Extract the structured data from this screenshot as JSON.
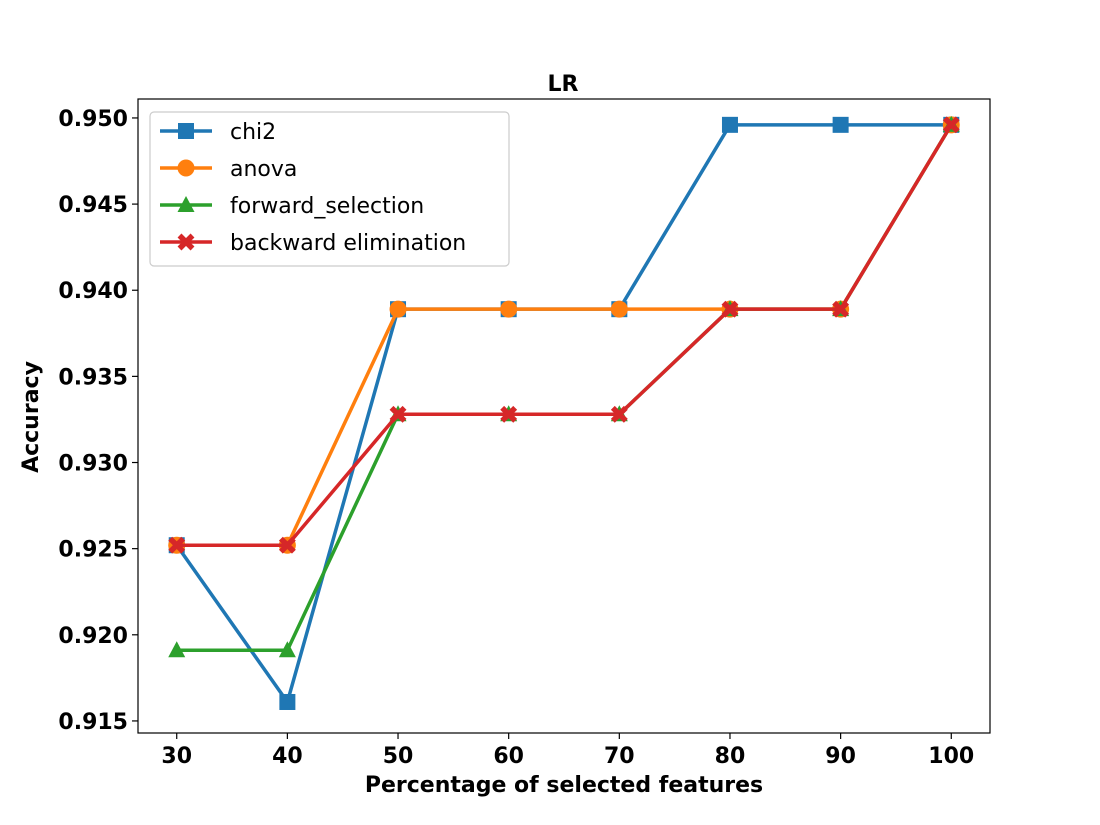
{
  "chart_data": {
    "type": "line",
    "title": "LR",
    "xlabel": "Percentage of selected features",
    "ylabel": "Accuracy",
    "x": [
      30,
      40,
      50,
      60,
      70,
      80,
      90,
      100
    ],
    "xticks": [
      "30",
      "40",
      "50",
      "60",
      "70",
      "80",
      "90",
      "100"
    ],
    "yticks": [
      "0.915",
      "0.920",
      "0.925",
      "0.930",
      "0.935",
      "0.940",
      "0.945",
      "0.950"
    ],
    "ylim": [
      0.9143,
      0.9511
    ],
    "xlim": [
      26.5,
      103.5
    ],
    "grid": false,
    "legend_position": "top-left",
    "series": [
      {
        "name": "chi2",
        "color": "#1f77b4",
        "marker": "square",
        "values": [
          0.9252,
          0.9161,
          0.9389,
          0.9389,
          0.9389,
          0.9496,
          0.9496,
          0.9496
        ]
      },
      {
        "name": "anova",
        "color": "#ff7f0e",
        "marker": "circle",
        "values": [
          0.9252,
          0.9252,
          0.9389,
          0.9389,
          0.9389,
          0.9389,
          0.9389,
          0.9496
        ]
      },
      {
        "name": "forward_selection",
        "color": "#2ca02c",
        "marker": "triangle",
        "values": [
          0.9191,
          0.9191,
          0.9328,
          0.9328,
          0.9328,
          0.9389,
          0.9389,
          0.9496
        ]
      },
      {
        "name": "backward elimination",
        "color": "#d62728",
        "marker": "x",
        "values": [
          0.9252,
          0.9252,
          0.9328,
          0.9328,
          0.9328,
          0.9389,
          0.9389,
          0.9496
        ]
      }
    ]
  }
}
